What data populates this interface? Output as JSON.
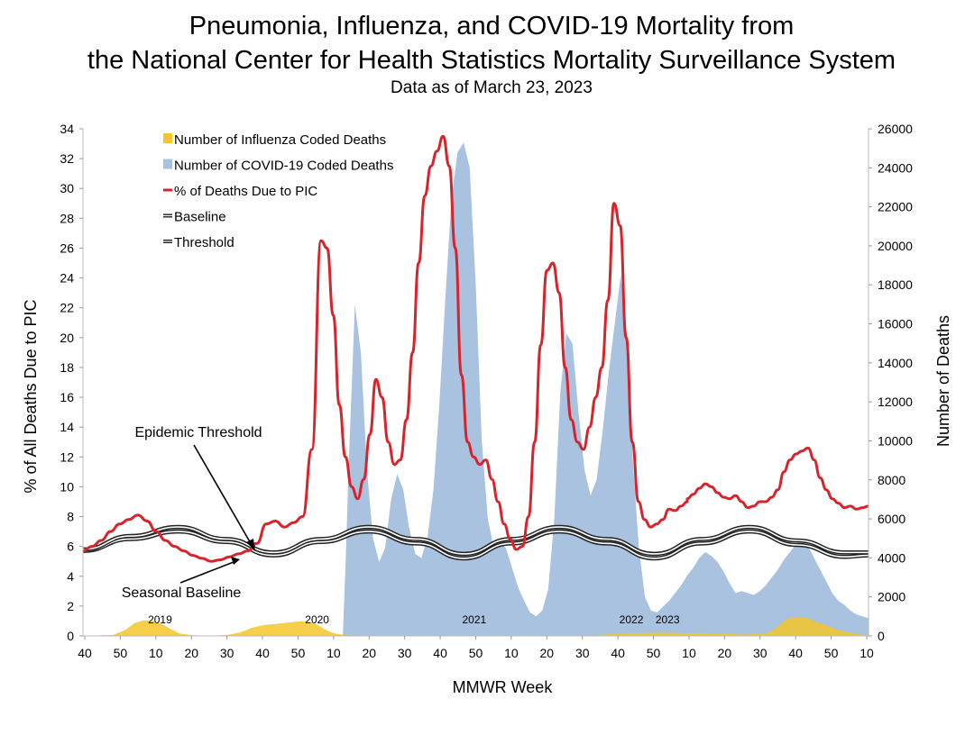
{
  "title_line1": "Pneumonia, Influenza, and COVID-19 Mortality from",
  "title_line2": "the National Center for Health Statistics Mortality Surveillance System",
  "subtitle": "Data as of March 23, 2023",
  "colors": {
    "pic_line": "#d9232a",
    "covid_area": "#a8c2e0",
    "flu_area": "#f5c52a",
    "baseline": "#222222"
  },
  "chart_data": {
    "type": "area",
    "xlabel": "MMWR Week",
    "ylabel_left": "% of All Deaths Due to PIC",
    "ylabel_right": "Number of Deaths",
    "ylim_left": [
      0,
      34
    ],
    "ylim_right": [
      0,
      26000
    ],
    "yticks_left": [
      "0",
      "2",
      "4",
      "6",
      "8",
      "10",
      "12",
      "14",
      "16",
      "18",
      "20",
      "22",
      "24",
      "26",
      "28",
      "30",
      "32",
      "34"
    ],
    "yticks_right": [
      "0",
      "2000",
      "4000",
      "6000",
      "8000",
      "10000",
      "12000",
      "14000",
      "16000",
      "18000",
      "20000",
      "22000",
      "24000",
      "26000"
    ],
    "x_ticks": [
      "40",
      "50",
      "10",
      "20",
      "30",
      "40",
      "50",
      "10",
      "20",
      "30",
      "40",
      "50",
      "10",
      "20",
      "30",
      "40",
      "50",
      "10",
      "20",
      "30",
      "40",
      "50",
      "10"
    ],
    "season_labels": [
      {
        "text": "2019",
        "x": 25.5
      },
      {
        "text": "2020",
        "x": 77.5
      },
      {
        "text": "2021",
        "x": 129.5
      },
      {
        "text": "2022",
        "x": 181.5
      },
      {
        "text": "2023",
        "x": 193.5
      }
    ],
    "legend": [
      {
        "label": "Number of Influenza Coded Deaths",
        "kind": "flu"
      },
      {
        "label": "Number of COVID-19 Coded Deaths",
        "kind": "covid"
      },
      {
        "label": "% of Deaths Due to PIC",
        "kind": "pic"
      },
      {
        "label": "Baseline",
        "kind": "baseline"
      },
      {
        "label": "Threshold",
        "kind": "threshold"
      }
    ],
    "annotations": [
      {
        "text": "Epidemic Threshold"
      },
      {
        "text": "Seasonal Baseline"
      }
    ],
    "baseline": {
      "x": [
        0,
        12,
        24,
        36,
        48,
        60,
        72,
        84,
        96,
        108,
        120,
        132,
        144,
        156,
        168,
        180,
        192,
        198
      ],
      "y": [
        5.7,
        6.5,
        7.0,
        6.3,
        5.4,
        6.3,
        7.0,
        6.2,
        5.2,
        6.2,
        7.0,
        6.2,
        5.2,
        6.2,
        7.0,
        6.1,
        5.3,
        5.4
      ]
    },
    "threshold": {
      "x": [
        0,
        12,
        24,
        36,
        48,
        60,
        72,
        84,
        96,
        108,
        120,
        132,
        144,
        156,
        168,
        180,
        192,
        198
      ],
      "y": [
        5.8,
        6.7,
        7.3,
        6.5,
        5.6,
        6.5,
        7.3,
        6.5,
        5.5,
        6.5,
        7.3,
        6.5,
        5.5,
        6.5,
        7.3,
        6.4,
        5.6,
        5.6
      ]
    },
    "pic_percent": {
      "x": [
        0,
        3,
        6,
        9,
        12,
        15,
        18,
        21,
        24,
        27,
        30,
        33,
        36,
        39,
        42,
        45,
        48,
        51,
        54,
        57,
        60,
        63,
        66,
        69,
        72,
        75,
        78,
        80,
        82,
        84,
        86,
        88,
        90,
        92,
        94,
        96,
        98,
        100,
        102,
        104,
        106,
        108,
        110,
        112,
        114,
        116,
        118,
        120,
        122,
        124,
        126,
        128,
        130,
        132,
        134,
        136,
        138,
        140,
        142,
        144,
        146,
        148,
        150,
        152,
        154,
        156,
        158,
        160,
        162,
        164,
        166,
        168,
        170,
        172,
        174,
        176,
        178,
        180,
        182,
        184,
        186,
        188,
        190,
        192,
        194,
        196,
        198
      ],
      "y": [
        5.7,
        6.0,
        6.4,
        7.0,
        7.5,
        7.8,
        8.1,
        7.7,
        7.0,
        6.4,
        6.0,
        5.7,
        5.4,
        5.2,
        5.0,
        5.1,
        5.3,
        5.5,
        5.7,
        6.2,
        7.5,
        7.7,
        7.3,
        7.6,
        8.0,
        12.5,
        26.5,
        26.0,
        21.5,
        15.5,
        12.0,
        10.0,
        9.2,
        10.5,
        13.5,
        17.2,
        16.0,
        13.0,
        11.5,
        11.8,
        14.5,
        19.0,
        25.0,
        29.5,
        31.5,
        32.5,
        33.5,
        31.5,
        26.0,
        17.5,
        13.0,
        12.0,
        11.5,
        11.8,
        10.5,
        9.0,
        7.5,
        6.5,
        5.8,
        6.0,
        8.0,
        13.0,
        19.5,
        24.5,
        25.0,
        23.0,
        18.0,
        14.5,
        13.0,
        12.5,
        14.0,
        16.0,
        18.0,
        22.5,
        29.0,
        27.5,
        20.0,
        13.0,
        9.0,
        7.8,
        7.3,
        7.5,
        7.8,
        8.5,
        8.4,
        8.7,
        9.0
      ]
    },
    "pic_percent_tail": {
      "x": [
        200,
        202,
        204,
        206,
        208,
        210,
        212,
        214,
        216,
        218,
        220,
        222,
        224,
        226,
        228,
        230,
        232,
        234,
        236,
        238,
        240,
        242,
        244,
        246,
        248,
        250,
        252,
        254,
        256,
        258,
        260
      ],
      "y": [
        9.2,
        9.5,
        9.9,
        10.2,
        10.0,
        9.6,
        9.3,
        9.2,
        9.4,
        9.0,
        8.6,
        8.7,
        9.0,
        9.0,
        9.3,
        9.8,
        11.0,
        11.8,
        12.2,
        12.4,
        12.6,
        11.8,
        10.6,
        9.8,
        9.2,
        8.9,
        8.6,
        8.7,
        8.5,
        8.6,
        8.7
      ]
    },
    "covid_deaths": {
      "x": [
        86,
        87,
        88,
        90,
        92,
        94,
        96,
        98,
        100,
        102,
        104,
        106,
        108,
        110,
        112,
        114,
        116,
        118,
        120,
        122,
        124,
        126,
        128,
        130,
        132,
        134,
        136,
        138,
        140,
        142,
        144,
        146,
        148,
        150,
        152,
        154,
        156,
        158,
        160,
        162,
        164,
        166,
        168,
        170,
        172,
        174,
        176,
        178,
        180,
        182,
        184,
        186,
        188,
        190,
        192,
        194,
        196,
        198,
        200,
        202,
        204,
        206,
        208,
        210,
        212,
        214,
        216,
        218,
        220,
        222,
        224,
        226,
        228,
        230,
        232,
        234,
        236,
        238,
        240,
        242,
        244,
        246,
        248,
        250,
        252,
        254,
        256,
        258,
        260
      ],
      "y": [
        0,
        4000,
        9000,
        17000,
        14500,
        8500,
        5000,
        3800,
        4500,
        7000,
        8300,
        7500,
        5500,
        4200,
        4000,
        5000,
        7500,
        12000,
        17500,
        22500,
        24800,
        25300,
        24000,
        18000,
        10000,
        6000,
        4500,
        4800,
        4500,
        3500,
        2500,
        1800,
        1200,
        1000,
        1300,
        2400,
        6000,
        12500,
        15500,
        15000,
        11500,
        8500,
        7200,
        8000,
        10500,
        13500,
        16000,
        18500,
        15500,
        9000,
        4500,
        2000,
        1300,
        1200,
        1500,
        1800,
        2200,
        2600,
        3100,
        3500,
        4000,
        4300,
        4100,
        3800,
        3300,
        2700,
        2200,
        2300,
        2200,
        2100,
        2300,
        2600,
        3000,
        3400,
        3900,
        4300,
        4700,
        5000,
        4600,
        4000,
        3400,
        2800,
        2200,
        1800,
        1600,
        1300,
        1100,
        1000,
        900
      ]
    },
    "flu_deaths": {
      "x": [
        0,
        10,
        14,
        17,
        20,
        23,
        26,
        29,
        32,
        36,
        40,
        44,
        48,
        52,
        56,
        60,
        63,
        66,
        69,
        72,
        75,
        77,
        79,
        81,
        83,
        85,
        87,
        89,
        91,
        100,
        110,
        120,
        130,
        140,
        150,
        160,
        170,
        180,
        190,
        200,
        210,
        220,
        226,
        228,
        230,
        232,
        234,
        236,
        238,
        240,
        242,
        244,
        246,
        248,
        250,
        252,
        254,
        256,
        258,
        260
      ],
      "y": [
        0,
        50,
        300,
        650,
        800,
        780,
        620,
        350,
        120,
        40,
        20,
        20,
        60,
        180,
        420,
        560,
        600,
        650,
        700,
        750,
        720,
        620,
        440,
        260,
        140,
        80,
        60,
        50,
        40,
        20,
        15,
        20,
        20,
        20,
        15,
        15,
        50,
        120,
        160,
        140,
        100,
        70,
        120,
        260,
        480,
        760,
        920,
        980,
        960,
        880,
        760,
        640,
        520,
        420,
        300,
        220,
        160,
        100,
        60,
        30
      ]
    }
  }
}
